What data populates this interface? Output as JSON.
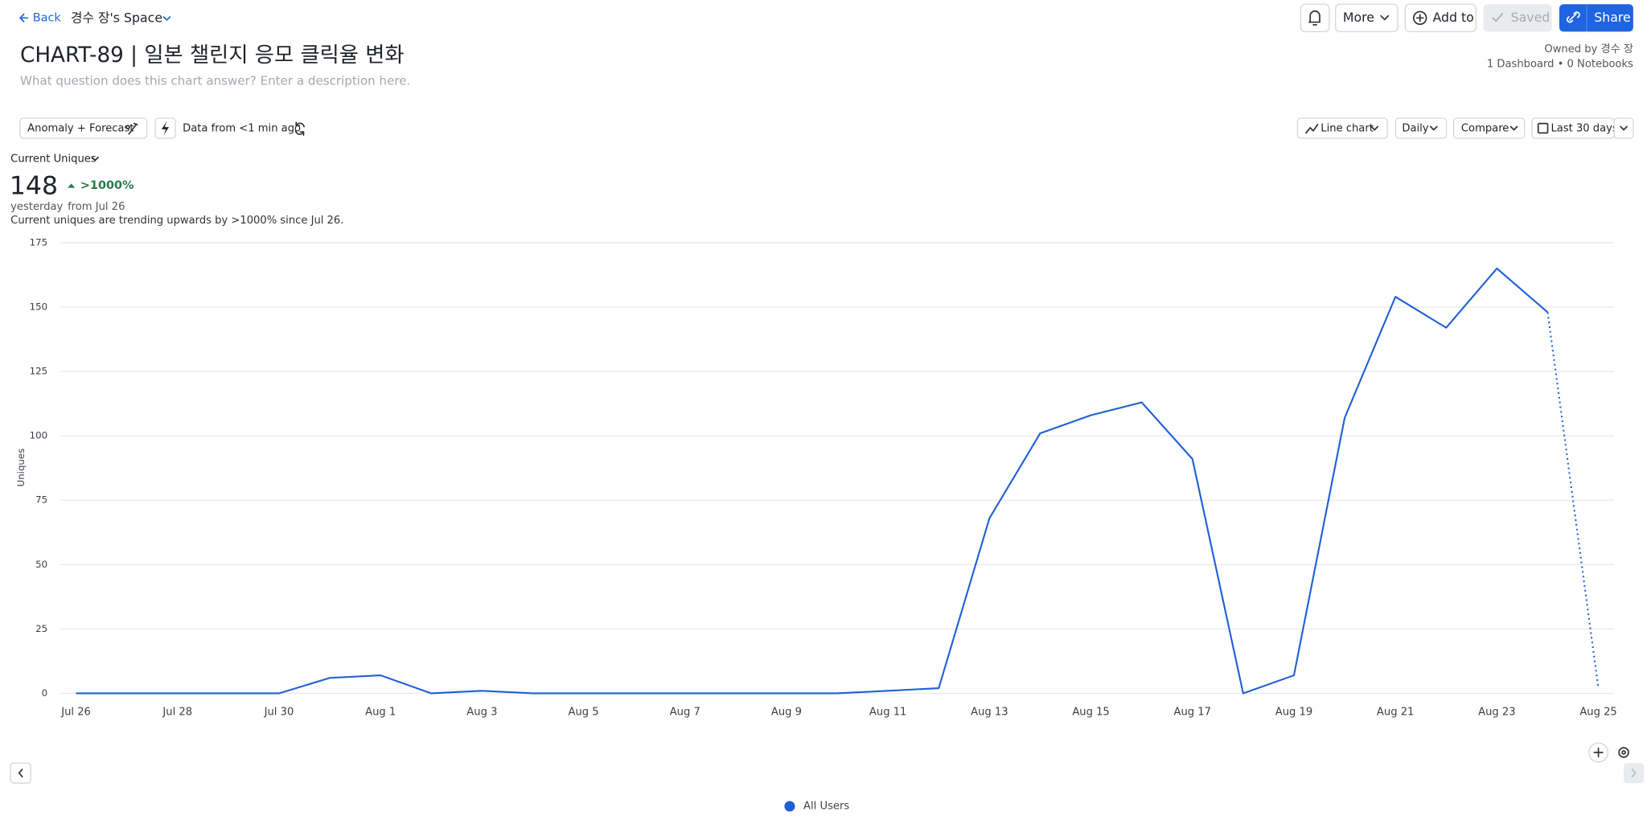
{
  "header": {
    "back": "Back",
    "space": "경수 장's Space",
    "more": "More",
    "add_to": "Add to",
    "saved": "Saved",
    "share": "Share",
    "title": "CHART-89 | 일본 챌린지 응모 클릭율 변화",
    "description": "What question does this chart answer? Enter a description here.",
    "owner": "Owned by 경수 장",
    "usage": "1 Dashboard • 0 Notebooks"
  },
  "toolbar": {
    "anomaly": "Anomaly + Forecast",
    "freshness": "Data from <1 min ago",
    "chart_type": "Line chart",
    "interval": "Daily",
    "compare": "Compare",
    "range": "Last 30 days"
  },
  "metric": {
    "name": "Current Uniques",
    "value": 148,
    "period": "yesterday",
    "change": ">1000%",
    "since": "from Jul 26",
    "summary": "Current uniques are trending upwards by >1000% since Jul 26."
  },
  "chart_data": {
    "type": "line",
    "y_label": "Uniques",
    "categories": [
      "Jul 26",
      null,
      "Jul 28",
      null,
      "Jul 30",
      null,
      "Aug 1",
      null,
      "Aug 3",
      null,
      "Aug 5",
      null,
      "Aug 7",
      null,
      "Aug 9",
      null,
      "Aug 11",
      null,
      "Aug 13",
      null,
      "Aug 15",
      null,
      "Aug 17",
      null,
      "Aug 19",
      null,
      "Aug 21",
      null,
      "Aug 23",
      null,
      "Aug 25"
    ],
    "series": [
      {
        "name": "All Users",
        "color": "#1f5fd6",
        "values": [
          0,
          0,
          0,
          0,
          0,
          6,
          7,
          0,
          1,
          0,
          0,
          0,
          0,
          0,
          0,
          0,
          1,
          2,
          68,
          101,
          108,
          113,
          91,
          0,
          7,
          107,
          154,
          142,
          165,
          148,
          2
        ]
      }
    ],
    "ylim": [
      0,
      175
    ],
    "yticks": [
      0,
      25,
      50,
      75,
      100,
      125,
      150,
      175
    ],
    "grid": true
  }
}
